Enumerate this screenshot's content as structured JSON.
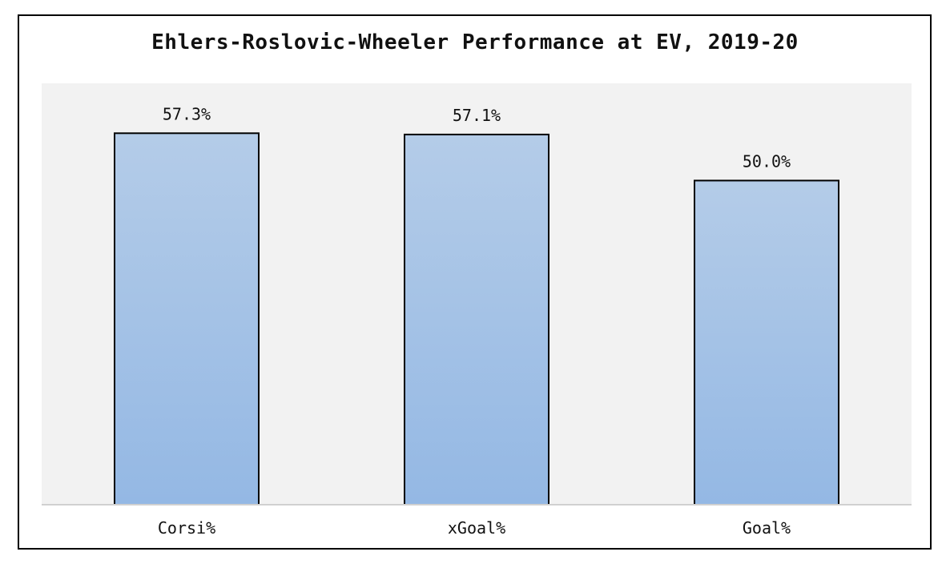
{
  "chart_data": {
    "type": "bar",
    "title": "Ehlers-Roslovic-Wheeler Performance at EV, 2019-20",
    "categories": [
      "Corsi%",
      "xGoal%",
      "Goal%"
    ],
    "values": [
      57.3,
      57.1,
      50.0
    ],
    "value_labels": [
      "57.3%",
      "57.1%",
      "50.0%"
    ],
    "xlabel": "",
    "ylabel": "",
    "ylim": [
      0,
      65
    ],
    "grid": false,
    "legend": "none",
    "colors": {
      "bar_top": "#b4cce8",
      "bar_bottom": "#94b8e4",
      "bar_stroke": "#000000",
      "plot_background": "#f2f2f2",
      "axis_line": "#d0d0d0"
    }
  }
}
